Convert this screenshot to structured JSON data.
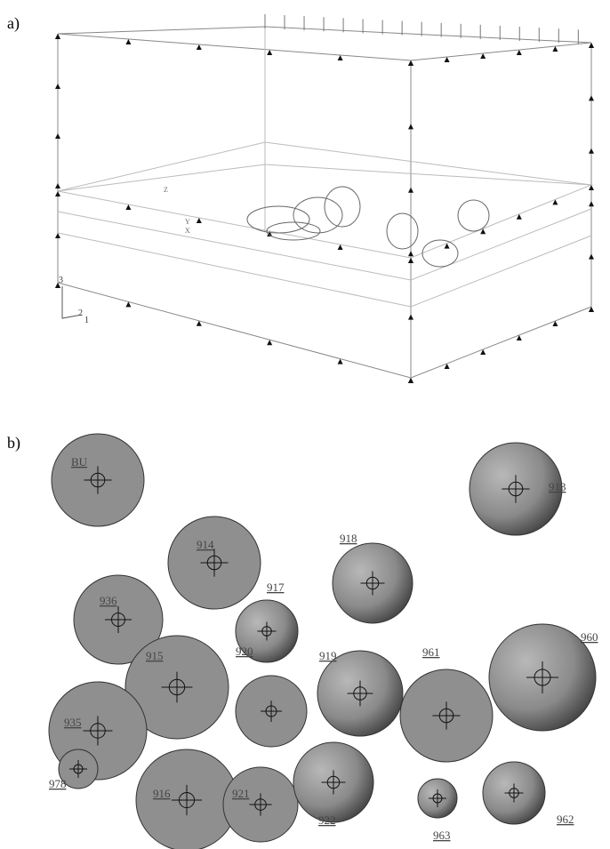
{
  "panel_a": {
    "label": "a)",
    "triad": [
      "3",
      "2",
      "1"
    ],
    "small_triad": [
      "Z",
      "Y",
      "X"
    ]
  },
  "panel_b": {
    "label": "b)",
    "piles": [
      {
        "label": "BU"
      },
      {
        "label": "913"
      },
      {
        "label": "914"
      },
      {
        "label": "918"
      },
      {
        "label": "936"
      },
      {
        "label": "917"
      },
      {
        "label": "960"
      },
      {
        "label": "919"
      },
      {
        "label": "961"
      },
      {
        "label": "915"
      },
      {
        "label": "920"
      },
      {
        "label": "935"
      },
      {
        "label": "978"
      },
      {
        "label": "916"
      },
      {
        "label": "921"
      },
      {
        "label": "922"
      },
      {
        "label": "963"
      },
      {
        "label": "962"
      }
    ]
  }
}
